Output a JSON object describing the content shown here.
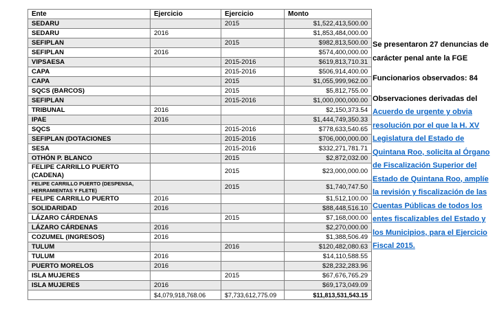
{
  "table": {
    "headers": [
      "Ente",
      "Ejercicio",
      "Ejercicio",
      "Monto"
    ],
    "rows": [
      {
        "ente": "SEDARU",
        "ej1": "",
        "ej2": "2015",
        "monto": "$1,522,413,500.00"
      },
      {
        "ente": "SEDARU",
        "ej1": "2016",
        "ej2": "",
        "monto": "$1,853,484,000.00"
      },
      {
        "ente": "SEFIPLAN",
        "ej1": "",
        "ej2": "2015",
        "monto": "$982,813,500.00"
      },
      {
        "ente": "SEFIPLAN",
        "ej1": "2016",
        "ej2": "",
        "monto": "$574,400,000.00"
      },
      {
        "ente": "VIPSAESA",
        "ej1": "",
        "ej2": "2015-2016",
        "monto": "$619,813,710.31"
      },
      {
        "ente": "CAPA",
        "ej1": "",
        "ej2": "2015-2016",
        "monto": "$506,914,400.00"
      },
      {
        "ente": "CAPA",
        "ej1": "",
        "ej2": "2015",
        "monto": "$1,055,999,962.00"
      },
      {
        "ente": "SQCS (BARCOS)",
        "ej1": "",
        "ej2": "2015",
        "monto": "$5,812,755.00"
      },
      {
        "ente": "SEFIPLAN",
        "ej1": "",
        "ej2": "2015-2016",
        "monto": "$1,000,000,000.00"
      },
      {
        "ente": "TRIBUNAL",
        "ej1": "2016",
        "ej2": "",
        "monto": "$2,150,373.54"
      },
      {
        "ente": "IPAE",
        "ej1": "2016",
        "ej2": "",
        "monto": "$1,444,749,350.33"
      },
      {
        "ente": "SQCS",
        "ej1": "",
        "ej2": "2015-2016",
        "monto": "$778,633,540.65"
      },
      {
        "ente": "SEFIPLAN (DOTACIONES",
        "ej1": "",
        "ej2": "2015-2016",
        "monto": "$706,000,000.00"
      },
      {
        "ente": "SESA",
        "ej1": "",
        "ej2": "2015-2016",
        "monto": "$332,271,781.71"
      },
      {
        "ente": "OTHÓN P. BLANCO",
        "ej1": "",
        "ej2": "2015",
        "monto": "$2,872,032.00"
      },
      {
        "ente": "FELIPE CARRILLO PUERTO (CADENA)",
        "ej1": "",
        "ej2": "2015",
        "monto": "$23,000,000.00"
      },
      {
        "ente": "FELIPE CARRILLO PUERTO (DESPENSA, HERRAMIENTAS Y FLETE)",
        "ej1": "",
        "ej2": "2015",
        "monto": "$1,740,747.50",
        "small": true
      },
      {
        "ente": "FELIPE CARRILLO PUERTO",
        "ej1": "2016",
        "ej2": "",
        "monto": "$1,512,100.00"
      },
      {
        "ente": "SOLIDARIDAD",
        "ej1": "2016",
        "ej2": "",
        "monto": "$88,448,516.10"
      },
      {
        "ente": "LÁZARO CÁRDENAS",
        "ej1": "",
        "ej2": "2015",
        "monto": "$7,168,000.00"
      },
      {
        "ente": "LÁZARO CÁRDENAS",
        "ej1": "2016",
        "ej2": "",
        "monto": "$2,270,000.00"
      },
      {
        "ente": "COZUMEL (INGRESOS)",
        "ej1": "2016",
        "ej2": "",
        "monto": "$1,388,506.49"
      },
      {
        "ente": "TULUM",
        "ej1": "",
        "ej2": "2016",
        "monto": "$120,482,080.63"
      },
      {
        "ente": "TULUM",
        "ej1": "2016",
        "ej2": "",
        "monto": "$14,110,588.55"
      },
      {
        "ente": "PUERTO MORELOS",
        "ej1": "2016",
        "ej2": "",
        "monto": "$28,232,283.96"
      },
      {
        "ente": "ISLA MUJERES",
        "ej1": "",
        "ej2": "2015",
        "monto": "$67,676,765.29"
      },
      {
        "ente": "ISLA MUJERES",
        "ej1": "2016",
        "ej2": "",
        "monto": "$69,173,049.09"
      }
    ],
    "total": {
      "ente": "",
      "ej1": "$4,079,918,768.06",
      "ej2": "$7,733,612,775.09",
      "monto": "$11,813,531,543.15"
    }
  },
  "sidebar": {
    "denuncias_note": "Se presentaron 27 denuncias de carácter penal ante la FGE",
    "funcionarios_note": "Funcionarios observados: 84",
    "observaciones_prefix": "Observaciones derivadas del",
    "observaciones_link": "Acuerdo de urgente y obvia resolución por el que la H. XV Legislatura del Estado de Quintana Roo, solicita al Órgano de Fiscalización Superior del Estado de Quintana Roo, amplíe la revisión y fiscalización de las Cuentas Públicas de todos los entes fiscalizables del Estado y los Municipios, para el Ejercicio Fiscal 2015."
  },
  "colors": {
    "link_blue": "#0c64c5",
    "row_alt_gray": "#e9e9e9"
  }
}
